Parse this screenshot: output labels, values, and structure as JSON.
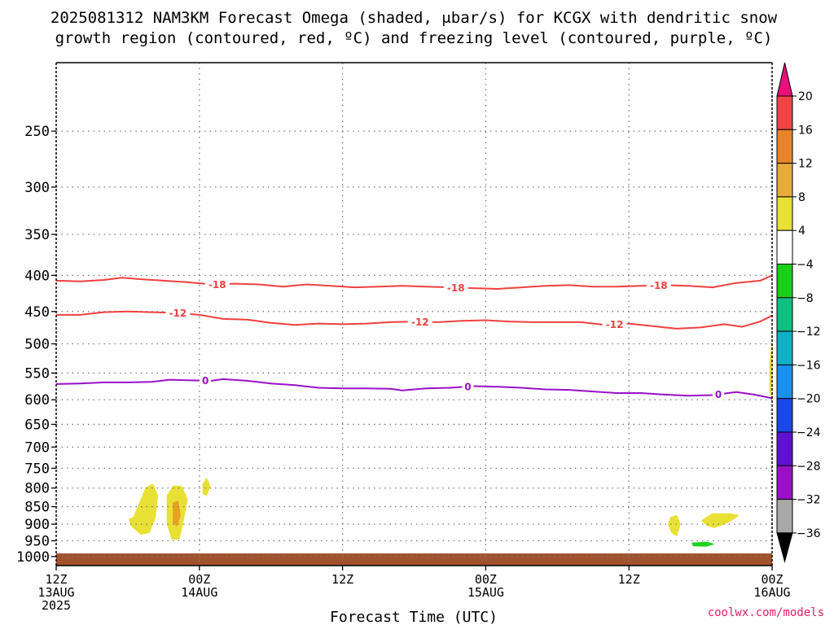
{
  "chart_data": {
    "type": "contour",
    "title_line1": "2025081312 NAM3KM Forecast Omega (shaded, μbar/s) for KCGX with dendritic snow",
    "title_line2": "growth region (contoured, red, ºC) and freezing level (contoured, purple, ºC)",
    "xlabel": "Forecast Time (UTC)",
    "credit": "coolwx.com/models",
    "x_range_hours": [
      0,
      60
    ],
    "y_axis": {
      "scale": "log",
      "unit": "hPa",
      "range": [
        1030,
        200
      ],
      "ticks": [
        250,
        300,
        350,
        400,
        450,
        500,
        550,
        600,
        650,
        700,
        750,
        800,
        850,
        900,
        950,
        1000
      ]
    },
    "x_ticks": [
      {
        "hour": 0,
        "line1": "12Z",
        "line2": "13AUG",
        "line3": "2025"
      },
      {
        "hour": 12,
        "line1": "00Z",
        "line2": "14AUG",
        "line3": ""
      },
      {
        "hour": 24,
        "line1": "12Z",
        "line2": "",
        "line3": ""
      },
      {
        "hour": 36,
        "line1": "00Z",
        "line2": "15AUG",
        "line3": ""
      },
      {
        "hour": 48,
        "line1": "12Z",
        "line2": "",
        "line3": ""
      },
      {
        "hour": 60,
        "line1": "00Z",
        "line2": "16AUG",
        "line3": ""
      }
    ],
    "contours": [
      {
        "name": "-18",
        "color": "#f04040",
        "labels": [
          {
            "hour": 13.5,
            "label": "-18"
          },
          {
            "hour": 33.5,
            "label": "-18"
          },
          {
            "hour": 50.5,
            "label": "-18"
          }
        ],
        "points": [
          [
            0,
            407
          ],
          [
            2,
            408
          ],
          [
            4,
            406
          ],
          [
            5.5,
            403
          ],
          [
            7,
            405
          ],
          [
            9,
            407
          ],
          [
            11,
            409
          ],
          [
            13,
            412
          ],
          [
            15,
            411
          ],
          [
            17,
            412
          ],
          [
            19,
            415
          ],
          [
            21,
            412
          ],
          [
            23,
            414
          ],
          [
            25,
            416
          ],
          [
            27,
            415
          ],
          [
            29,
            414
          ],
          [
            31,
            415
          ],
          [
            33,
            416
          ],
          [
            35,
            417
          ],
          [
            37,
            418
          ],
          [
            39,
            416
          ],
          [
            41,
            414
          ],
          [
            43,
            413
          ],
          [
            45,
            415
          ],
          [
            47,
            415
          ],
          [
            49,
            414
          ],
          [
            51,
            413
          ],
          [
            53,
            414
          ],
          [
            55,
            416
          ],
          [
            57,
            410
          ],
          [
            59,
            407
          ],
          [
            60,
            400
          ]
        ]
      },
      {
        "name": "-12",
        "color": "#f04040",
        "labels": [
          {
            "hour": 10.2,
            "label": "-12"
          },
          {
            "hour": 30.5,
            "label": "-12"
          },
          {
            "hour": 46.8,
            "label": "-12"
          }
        ],
        "points": [
          [
            0,
            455
          ],
          [
            2,
            455
          ],
          [
            4,
            451
          ],
          [
            6,
            450
          ],
          [
            8,
            451
          ],
          [
            10,
            452
          ],
          [
            12,
            455
          ],
          [
            14,
            461
          ],
          [
            16,
            462
          ],
          [
            18,
            467
          ],
          [
            20,
            470
          ],
          [
            22,
            468
          ],
          [
            24,
            469
          ],
          [
            26,
            468
          ],
          [
            28,
            466
          ],
          [
            30,
            465
          ],
          [
            32,
            466
          ],
          [
            34,
            464
          ],
          [
            36,
            463
          ],
          [
            38,
            465
          ],
          [
            40,
            466
          ],
          [
            42,
            466
          ],
          [
            44,
            466
          ],
          [
            46,
            470
          ],
          [
            48,
            468
          ],
          [
            50,
            472
          ],
          [
            52,
            476
          ],
          [
            54,
            474
          ],
          [
            56,
            469
          ],
          [
            57.5,
            473
          ],
          [
            59,
            465
          ],
          [
            60,
            456
          ]
        ]
      },
      {
        "name": "0",
        "color": "#9a10c8",
        "labels": [
          {
            "hour": 12.5,
            "label": "0"
          },
          {
            "hour": 34.5,
            "label": "0"
          },
          {
            "hour": 55.5,
            "label": "0"
          }
        ],
        "points": [
          [
            0,
            570
          ],
          [
            2,
            569
          ],
          [
            4,
            567
          ],
          [
            6,
            567
          ],
          [
            8,
            566
          ],
          [
            9.5,
            562
          ],
          [
            11,
            563
          ],
          [
            13,
            564
          ],
          [
            14,
            561
          ],
          [
            16,
            564
          ],
          [
            18,
            569
          ],
          [
            20,
            572
          ],
          [
            22,
            577
          ],
          [
            24,
            578
          ],
          [
            26,
            578
          ],
          [
            28,
            579
          ],
          [
            29,
            582
          ],
          [
            31,
            578
          ],
          [
            33,
            577
          ],
          [
            35,
            574
          ],
          [
            37,
            575
          ],
          [
            39,
            577
          ],
          [
            41,
            580
          ],
          [
            43,
            581
          ],
          [
            45,
            584
          ],
          [
            47,
            587
          ],
          [
            49,
            587
          ],
          [
            51,
            590
          ],
          [
            53,
            592
          ],
          [
            55,
            591
          ],
          [
            57,
            585
          ],
          [
            58.5,
            590
          ],
          [
            60,
            597
          ]
        ]
      }
    ],
    "omega_regions": [
      {
        "value": 4,
        "color": "#e8e034",
        "outline": [
          [
            6.5,
            880
          ],
          [
            7.5,
            800
          ],
          [
            8.1,
            790
          ],
          [
            8.5,
            820
          ],
          [
            8.3,
            880
          ],
          [
            7.8,
            925
          ],
          [
            7.1,
            930
          ],
          [
            6.3,
            905
          ],
          [
            6.1,
            885
          ]
        ]
      },
      {
        "value": 4,
        "color": "#e8e034",
        "outline": [
          [
            9.3,
            820
          ],
          [
            9.8,
            795
          ],
          [
            10.5,
            795
          ],
          [
            11.0,
            830
          ],
          [
            10.6,
            900
          ],
          [
            10.3,
            945
          ],
          [
            9.7,
            945
          ],
          [
            9.3,
            900
          ]
        ]
      },
      {
        "value": 8,
        "color": "#e8a020",
        "outline": [
          [
            9.8,
            840
          ],
          [
            10.2,
            835
          ],
          [
            10.4,
            875
          ],
          [
            10.1,
            905
          ],
          [
            9.8,
            895
          ]
        ]
      },
      {
        "value": 4,
        "color": "#e8e034",
        "outline": [
          [
            12.3,
            790
          ],
          [
            12.6,
            775
          ],
          [
            12.9,
            795
          ],
          [
            12.6,
            820
          ],
          [
            12.3,
            815
          ]
        ]
      },
      {
        "value": 4,
        "color": "#e8e034",
        "outline": [
          [
            51.5,
            880
          ],
          [
            52,
            875
          ],
          [
            52.3,
            900
          ],
          [
            52.0,
            935
          ],
          [
            51.6,
            925
          ],
          [
            51.3,
            900
          ]
        ]
      },
      {
        "value": 4,
        "color": "#e8e034",
        "outline": [
          [
            54.3,
            885
          ],
          [
            55,
            870
          ],
          [
            56.5,
            870
          ],
          [
            57.2,
            875
          ],
          [
            56.3,
            895
          ],
          [
            55.2,
            910
          ],
          [
            54.6,
            905
          ],
          [
            54.1,
            890
          ]
        ]
      },
      {
        "value": -4,
        "color": "#20d020",
        "outline": [
          [
            53.3,
            957
          ],
          [
            54.5,
            954
          ],
          [
            55.1,
            960
          ],
          [
            54.5,
            967
          ],
          [
            53.4,
            966
          ]
        ]
      },
      {
        "value": 4,
        "color": "#e8e034",
        "outline": [
          [
            59.8,
            530
          ],
          [
            60,
            500
          ],
          [
            60,
            600
          ],
          [
            59.8,
            580
          ]
        ]
      }
    ],
    "terrain": {
      "color": "#a0522d",
      "top_hpa": 990
    },
    "colorbar": [
      {
        "min": 20,
        "max": null,
        "color": "#e8107a"
      },
      {
        "min": 16,
        "max": 20,
        "color": "#f04444"
      },
      {
        "min": 12,
        "max": 16,
        "color": "#e8852a"
      },
      {
        "min": 8,
        "max": 12,
        "color": "#e8aa3a"
      },
      {
        "min": 4,
        "max": 8,
        "color": "#e8e034"
      },
      {
        "min": -4,
        "max": 4,
        "color": "#ffffff"
      },
      {
        "min": -8,
        "max": -4,
        "color": "#18d018"
      },
      {
        "min": -12,
        "max": -8,
        "color": "#10c080"
      },
      {
        "min": -16,
        "max": -12,
        "color": "#10b0c8"
      },
      {
        "min": -20,
        "max": -16,
        "color": "#1890f0"
      },
      {
        "min": -24,
        "max": -20,
        "color": "#1848e8"
      },
      {
        "min": -28,
        "max": -24,
        "color": "#6010d0"
      },
      {
        "min": -32,
        "max": -28,
        "color": "#9a10c8"
      },
      {
        "min": -36,
        "max": -32,
        "color": "#a8a8a8"
      },
      {
        "min": null,
        "max": -36,
        "color": "#000000"
      }
    ],
    "colorbar_ticks": [
      20,
      16,
      12,
      8,
      4,
      -4,
      -8,
      -12,
      -16,
      -20,
      -24,
      -28,
      -32,
      -36
    ]
  }
}
